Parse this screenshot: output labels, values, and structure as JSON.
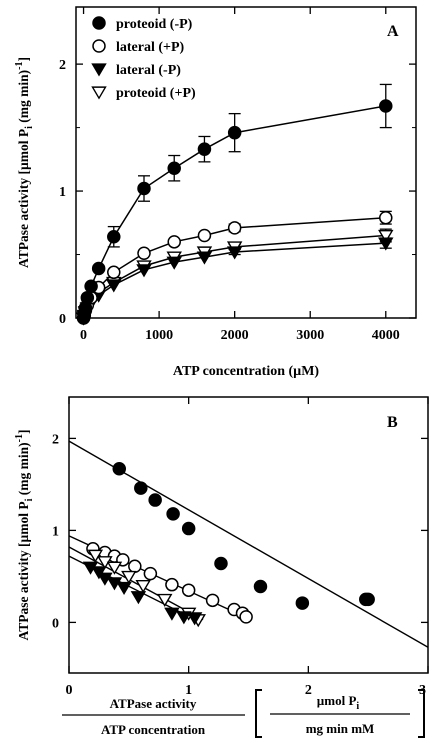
{
  "chart_data": [
    {
      "panel_label": "A",
      "type": "line",
      "xlabel": "ATP concentration (µM)",
      "ylabel_main": "ATPase activity [µmol P",
      "ylabel_sub": "i",
      "ylabel_tail": " (mg min)",
      "ylabel_sup": "-1",
      "ylabel_end": "]",
      "xlim": [
        -100,
        4400
      ],
      "ylim": [
        0,
        2.45
      ],
      "xticks": [
        0,
        1000,
        2000,
        3000,
        4000
      ],
      "xtick_labels": [
        "0",
        "1000",
        "2000",
        "3000",
        "4000"
      ],
      "yticks": [
        0,
        1,
        2
      ],
      "ytick_labels": [
        "0",
        "1",
        "2"
      ],
      "legend_position": "top-left",
      "series": [
        {
          "name": "proteoid (-P)",
          "marker": "filled-circle",
          "x": [
            0,
            10,
            25,
            50,
            100,
            200,
            400,
            800,
            1200,
            1600,
            2000,
            4000
          ],
          "y": [
            0,
            0.03,
            0.08,
            0.16,
            0.25,
            0.39,
            0.64,
            1.02,
            1.18,
            1.33,
            1.46,
            1.67
          ],
          "err": [
            0,
            0,
            0,
            0,
            0,
            0,
            0.08,
            0.1,
            0.1,
            0.1,
            0.15,
            0.17
          ]
        },
        {
          "name": "lateral (+P)",
          "marker": "open-circle",
          "x": [
            0,
            10,
            25,
            50,
            100,
            200,
            400,
            800,
            1200,
            1600,
            2000,
            4000
          ],
          "y": [
            0,
            0.02,
            0.06,
            0.1,
            0.16,
            0.24,
            0.36,
            0.51,
            0.6,
            0.65,
            0.71,
            0.79
          ],
          "err": [
            0,
            0,
            0,
            0,
            0,
            0,
            0,
            0,
            0,
            0,
            0.03,
            0.05
          ]
        },
        {
          "name": "lateral (-P)",
          "marker": "filled-triangle-down",
          "x": [
            0,
            10,
            25,
            50,
            100,
            200,
            400,
            800,
            1200,
            1600,
            2000,
            4000
          ],
          "y": [
            0,
            0.01,
            0.04,
            0.07,
            0.12,
            0.18,
            0.26,
            0.38,
            0.44,
            0.48,
            0.52,
            0.59
          ],
          "err": [
            0,
            0,
            0,
            0,
            0,
            0,
            0,
            0,
            0,
            0,
            0.02,
            0.04
          ]
        },
        {
          "name": "proteoid (+P)",
          "marker": "open-triangle-down",
          "x": [
            0,
            10,
            25,
            50,
            100,
            200,
            400,
            800,
            1200,
            1600,
            2000,
            4000
          ],
          "y": [
            0,
            0.02,
            0.05,
            0.08,
            0.13,
            0.2,
            0.28,
            0.41,
            0.48,
            0.52,
            0.56,
            0.65
          ],
          "err": [
            0,
            0,
            0,
            0,
            0,
            0,
            0,
            0,
            0,
            0,
            0.02,
            0.05
          ]
        }
      ]
    },
    {
      "panel_label": "B",
      "type": "scatter",
      "xlabel_top": "ATPase activity",
      "xlabel_bottom": "ATP concentration",
      "xunit_top": "µmol P",
      "xunit_top_sub": "i",
      "xunit_bottom": "mg min mM",
      "ylabel_main": "ATPase activity [µmol P",
      "ylabel_sub": "i",
      "ylabel_tail": " (mg min)",
      "ylabel_sup": "-1",
      "ylabel_end": "]",
      "xlim": [
        0,
        3
      ],
      "ylim": [
        -0.55,
        2.45
      ],
      "xticks": [
        0,
        1,
        2,
        3
      ],
      "xtick_labels": [
        "0",
        "1",
        "2",
        "3"
      ],
      "yticks": [
        0,
        1,
        2
      ],
      "ytick_labels": [
        "0",
        "1",
        "2"
      ],
      "series": [
        {
          "marker": "filled-circle",
          "x": [
            0.42,
            0.6,
            0.72,
            0.87,
            1.0,
            1.27,
            1.6,
            1.95,
            2.48,
            2.5
          ],
          "y": [
            1.67,
            1.46,
            1.33,
            1.18,
            1.02,
            0.64,
            0.39,
            0.21,
            0.25,
            0.25
          ],
          "fit": [
            [
              0,
              1.97
            ],
            [
              3,
              -0.27
            ]
          ]
        },
        {
          "marker": "open-circle",
          "x": [
            0.2,
            0.3,
            0.38,
            0.45,
            0.55,
            0.68,
            0.86,
            1.0,
            1.2,
            1.38,
            1.45,
            1.48
          ],
          "y": [
            0.8,
            0.76,
            0.72,
            0.68,
            0.61,
            0.53,
            0.41,
            0.35,
            0.24,
            0.14,
            0.1,
            0.06
          ],
          "fit": [
            [
              0,
              0.94
            ],
            [
              1.52,
              0.03
            ]
          ]
        },
        {
          "marker": "open-triangle-down",
          "x": [
            0.22,
            0.3,
            0.38,
            0.5,
            0.62,
            0.8,
            1.0,
            1.08
          ],
          "y": [
            0.73,
            0.66,
            0.6,
            0.5,
            0.4,
            0.25,
            0.1,
            0.03
          ],
          "fit": [
            [
              0,
              0.82
            ],
            [
              1.12,
              0.03
            ]
          ]
        },
        {
          "marker": "filled-triangle-down",
          "x": [
            0.18,
            0.25,
            0.3,
            0.38,
            0.46,
            0.58,
            0.86,
            0.96,
            1.05
          ],
          "y": [
            0.6,
            0.55,
            0.48,
            0.43,
            0.38,
            0.28,
            0.1,
            0.06,
            0.05
          ],
          "fit": [
            [
              0,
              0.72
            ],
            [
              1.1,
              0.0
            ]
          ]
        }
      ]
    }
  ]
}
